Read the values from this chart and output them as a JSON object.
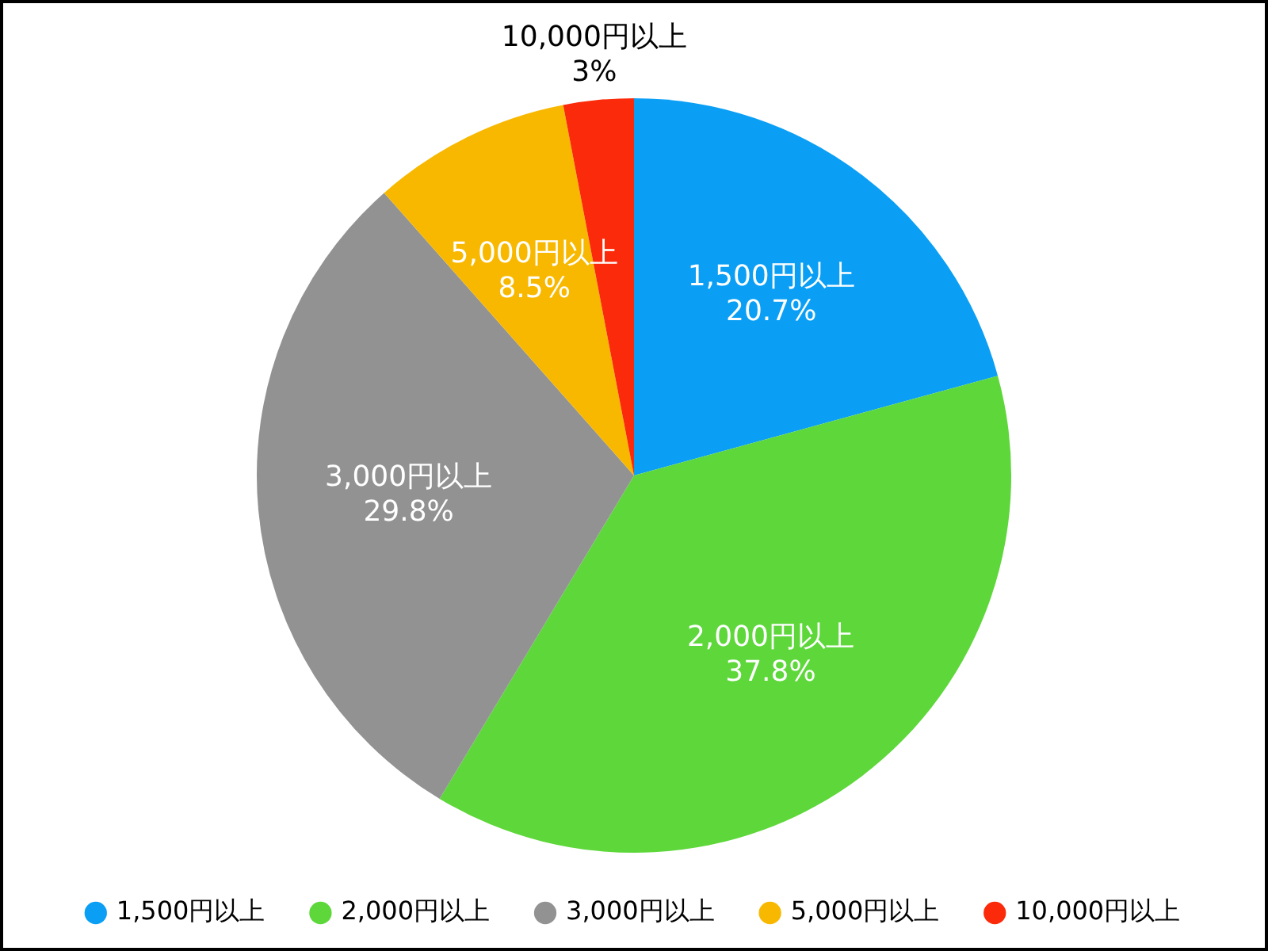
{
  "chart_data": {
    "type": "pie",
    "categories": [
      "1,500円以上",
      "2,000円以上",
      "3,000円以上",
      "5,000円以上",
      "10,000円以上"
    ],
    "values": [
      20.7,
      37.8,
      29.8,
      8.5,
      3
    ],
    "value_labels": [
      "20.7%",
      "37.8%",
      "29.8%",
      "8.5%",
      "3%"
    ],
    "colors": [
      "#0a9ff5",
      "#5dd73a",
      "#929292",
      "#f8b800",
      "#fb2a0a"
    ],
    "legend": "bottom"
  }
}
